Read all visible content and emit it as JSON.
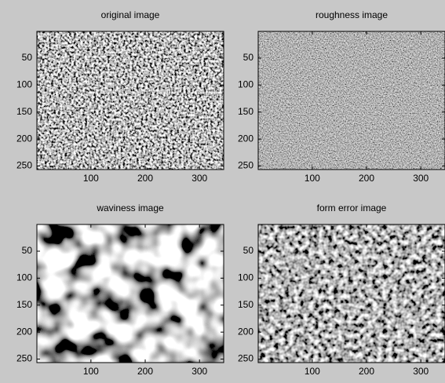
{
  "chart_data": [
    {
      "type": "image",
      "title": "original image",
      "xlim": [
        0.5,
        344.5
      ],
      "ylim": [
        0.5,
        256.5
      ],
      "y_reversed": true,
      "xticks": [
        100,
        200,
        300
      ],
      "yticks": [
        50,
        100,
        150,
        200,
        250
      ]
    },
    {
      "type": "image",
      "title": "roughness image",
      "xlim": [
        0.5,
        344.5
      ],
      "ylim": [
        0.5,
        256.5
      ],
      "y_reversed": true,
      "xticks": [
        100,
        200,
        300
      ],
      "yticks": [
        50,
        100,
        150,
        200,
        250
      ]
    },
    {
      "type": "image",
      "title": "waviness image",
      "xlim": [
        0.5,
        344.5
      ],
      "ylim": [
        0.5,
        256.5
      ],
      "y_reversed": true,
      "xticks": [
        100,
        200,
        300
      ],
      "yticks": [
        50,
        100,
        150,
        200,
        250
      ]
    },
    {
      "type": "image",
      "title": "form error image",
      "xlim": [
        0.5,
        344.5
      ],
      "ylim": [
        0.5,
        256.5
      ],
      "y_reversed": true,
      "xticks": [
        100,
        200,
        300
      ],
      "yticks": [
        50,
        100,
        150,
        200,
        250
      ]
    }
  ]
}
